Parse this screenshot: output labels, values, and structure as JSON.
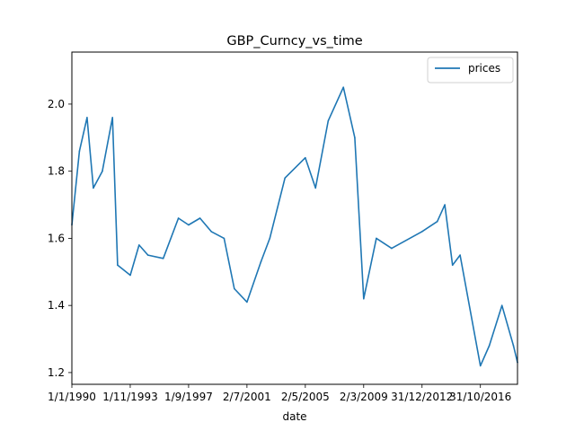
{
  "chart_data": {
    "type": "line",
    "title": "GBP_Curncy_vs_time",
    "xlabel": "date",
    "ylabel": "",
    "legend": {
      "position": "top-right",
      "entries": [
        "prices"
      ]
    },
    "grid": false,
    "xlim": [
      "1/1/1990",
      "9/4/2019"
    ],
    "ylim": [
      1.165,
      2.155
    ],
    "x_tick_labels": [
      "1/1/1990",
      "1/11/1993",
      "1/9/1997",
      "2/7/2001",
      "2/5/2005",
      "2/3/2009",
      "31/12/2012",
      "31/10/2016"
    ],
    "y_ticks": [
      1.2,
      1.4,
      1.6,
      1.8,
      2.0
    ],
    "y_tick_labels": [
      "1.2",
      "1.4",
      "1.6",
      "1.8",
      "2.0"
    ],
    "series": [
      {
        "name": "prices",
        "color": "#1f77b4",
        "x": [
          "1/1/1990",
          "1/7/1990",
          "1/1/1991",
          "1/6/1991",
          "1/1/1992",
          "1/9/1992",
          "1/1/1993",
          "1/11/1993",
          "1/6/1994",
          "1/1/1995",
          "1/1/1996",
          "1/1/1997",
          "1/9/1997",
          "1/6/1998",
          "1/3/1999",
          "1/1/2000",
          "1/9/2000",
          "2/7/2001",
          "1/6/2002",
          "1/1/2003",
          "1/1/2004",
          "2/5/2005",
          "1/1/2006",
          "1/11/2006",
          "1/11/2007",
          "1/8/2008",
          "2/3/2009",
          "1/1/2010",
          "1/1/2011",
          "31/12/2012",
          "1/1/2014",
          "1/7/2014",
          "1/1/2015",
          "1/7/2015",
          "31/10/2016",
          "1/6/2017",
          "1/4/2018",
          "1/1/2019",
          "9/4/2019"
        ],
        "values": [
          1.64,
          1.86,
          1.96,
          1.75,
          1.8,
          1.96,
          1.52,
          1.49,
          1.58,
          1.55,
          1.54,
          1.66,
          1.64,
          1.66,
          1.62,
          1.6,
          1.45,
          1.41,
          1.53,
          1.6,
          1.78,
          1.84,
          1.75,
          1.95,
          2.05,
          1.9,
          1.42,
          1.6,
          1.57,
          1.62,
          1.65,
          1.7,
          1.52,
          1.55,
          1.22,
          1.28,
          1.4,
          1.28,
          1.23
        ]
      }
    ]
  }
}
